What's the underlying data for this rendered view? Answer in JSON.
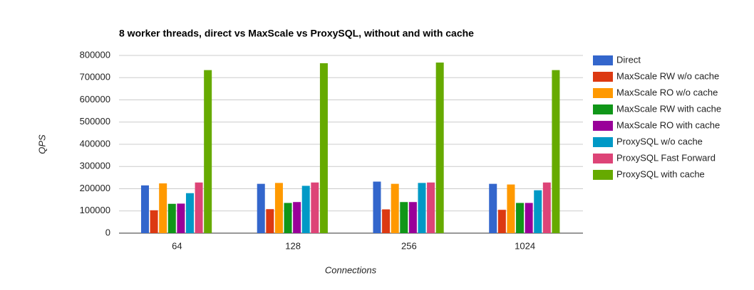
{
  "chart_data": {
    "type": "bar",
    "title": "8 worker threads, direct vs MaxScale vs ProxySQL, without and with cache",
    "x_label": "Connections",
    "y_label": "QPS",
    "categories": [
      "64",
      "128",
      "256",
      "1024"
    ],
    "series": [
      {
        "name": "Direct",
        "color": "#3366cc",
        "values": [
          215000,
          222000,
          232000,
          222000
        ]
      },
      {
        "name": "MaxScale RW w/o cache",
        "color": "#dc3912",
        "values": [
          103000,
          108000,
          107000,
          105000
        ]
      },
      {
        "name": "MaxScale RO w/o cache",
        "color": "#ff9900",
        "values": [
          224000,
          226000,
          222000,
          219000
        ]
      },
      {
        "name": "MaxScale RW with cache",
        "color": "#109618",
        "values": [
          132000,
          136000,
          140000,
          136000
        ]
      },
      {
        "name": "MaxScale RO with cache",
        "color": "#990099",
        "values": [
          133000,
          140000,
          140000,
          136000
        ]
      },
      {
        "name": "ProxySQL w/o cache",
        "color": "#0099c6",
        "values": [
          180000,
          213000,
          226000,
          193000
        ]
      },
      {
        "name": "ProxySQL Fast Forward",
        "color": "#dd4477",
        "values": [
          228000,
          228000,
          228000,
          228000
        ]
      },
      {
        "name": "ProxySQL with cache",
        "color": "#66aa00",
        "values": [
          734000,
          765000,
          768000,
          734000
        ]
      }
    ],
    "ylim": [
      0,
      800000
    ],
    "yticks": [
      0,
      100000,
      200000,
      300000,
      400000,
      500000,
      600000,
      700000,
      800000
    ],
    "grid": true,
    "legend": "right"
  }
}
